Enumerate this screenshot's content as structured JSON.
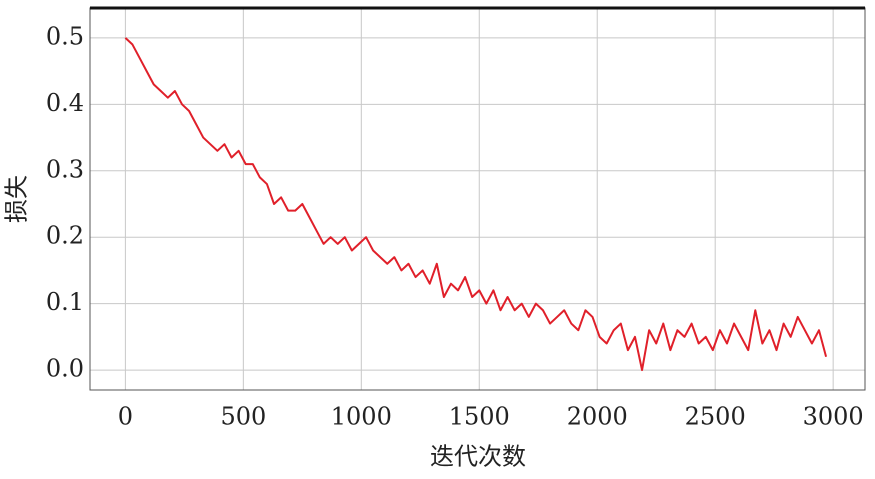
{
  "chart_data": {
    "type": "line",
    "xlabel": "迭代次数",
    "ylabel": "损失",
    "x": [
      0,
      30,
      60,
      90,
      120,
      150,
      180,
      210,
      240,
      270,
      300,
      330,
      360,
      390,
      420,
      450,
      480,
      510,
      540,
      570,
      600,
      630,
      660,
      690,
      720,
      750,
      780,
      810,
      840,
      870,
      900,
      930,
      960,
      990,
      1020,
      1050,
      1080,
      1110,
      1140,
      1170,
      1200,
      1230,
      1260,
      1290,
      1320,
      1350,
      1380,
      1410,
      1440,
      1470,
      1500,
      1530,
      1560,
      1590,
      1620,
      1650,
      1680,
      1710,
      1740,
      1770,
      1800,
      1830,
      1860,
      1890,
      1920,
      1950,
      1980,
      2010,
      2040,
      2070,
      2100,
      2130,
      2160,
      2190,
      2220,
      2250,
      2280,
      2310,
      2340,
      2370,
      2400,
      2430,
      2460,
      2490,
      2520,
      2550,
      2580,
      2610,
      2640,
      2670,
      2700,
      2730,
      2760,
      2790,
      2820,
      2850,
      2880,
      2910,
      2940,
      2970
    ],
    "series": [
      {
        "color": "#e0202a",
        "values": [
          0.5,
          0.49,
          0.47,
          0.45,
          0.43,
          0.42,
          0.41,
          0.42,
          0.4,
          0.39,
          0.37,
          0.35,
          0.34,
          0.33,
          0.34,
          0.32,
          0.33,
          0.31,
          0.31,
          0.29,
          0.28,
          0.25,
          0.26,
          0.24,
          0.24,
          0.25,
          0.23,
          0.21,
          0.19,
          0.2,
          0.19,
          0.2,
          0.18,
          0.19,
          0.2,
          0.18,
          0.17,
          0.16,
          0.17,
          0.15,
          0.16,
          0.14,
          0.15,
          0.13,
          0.16,
          0.11,
          0.13,
          0.12,
          0.14,
          0.11,
          0.12,
          0.1,
          0.12,
          0.09,
          0.11,
          0.09,
          0.1,
          0.08,
          0.1,
          0.09,
          0.07,
          0.08,
          0.09,
          0.07,
          0.06,
          0.09,
          0.08,
          0.05,
          0.04,
          0.06,
          0.07,
          0.03,
          0.05,
          0.0,
          0.06,
          0.04,
          0.07,
          0.03,
          0.06,
          0.05,
          0.07,
          0.04,
          0.05,
          0.03,
          0.06,
          0.04,
          0.07,
          0.05,
          0.03,
          0.09,
          0.04,
          0.06,
          0.03,
          0.07,
          0.05,
          0.08,
          0.06,
          0.04,
          0.06,
          0.02
        ]
      }
    ],
    "xlim": [
      -150,
      3135
    ],
    "ylim": [
      -0.03,
      0.545
    ],
    "xticks": [
      0,
      500,
      1000,
      1500,
      2000,
      2500,
      3000
    ],
    "yticks": [
      {
        "value": 0,
        "label": "0.0"
      },
      0.1,
      0.2,
      0.3,
      0.4,
      0.5
    ],
    "grid": true
  }
}
